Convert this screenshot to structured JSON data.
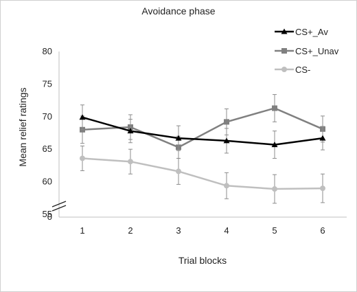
{
  "chart_data": {
    "type": "line",
    "title": "Avoidance phase",
    "xlabel": "Trial blocks",
    "ylabel": "Mean relief ratings",
    "categories": [
      "1",
      "2",
      "3",
      "4",
      "5",
      "6"
    ],
    "yticks": [
      55,
      60,
      65,
      70,
      75,
      80
    ],
    "ylim": [
      55,
      80
    ],
    "y_break_label": "0",
    "axis_break": true,
    "grid": false,
    "legend_position": "top-right",
    "series": [
      {
        "name": "CS+_Av",
        "marker": "triangle",
        "color": "#000000",
        "values": [
          69.9,
          67.8,
          66.7,
          66.3,
          65.7,
          66.7
        ],
        "errors": [
          1.9,
          1.8,
          1.9,
          1.9,
          2.1,
          1.8
        ]
      },
      {
        "name": "CS+_Unav",
        "marker": "square",
        "color": "#808080",
        "values": [
          68.0,
          68.4,
          65.3,
          69.2,
          71.3,
          68.1
        ],
        "errors": [
          2.1,
          1.9,
          1.7,
          2.0,
          2.1,
          2.0
        ]
      },
      {
        "name": "CS-",
        "marker": "circle",
        "color": "#bfbfbf",
        "values": [
          63.6,
          63.1,
          61.6,
          59.4,
          58.9,
          59.0
        ],
        "errors": [
          1.9,
          1.9,
          2.0,
          2.0,
          2.2,
          2.2
        ]
      }
    ]
  }
}
